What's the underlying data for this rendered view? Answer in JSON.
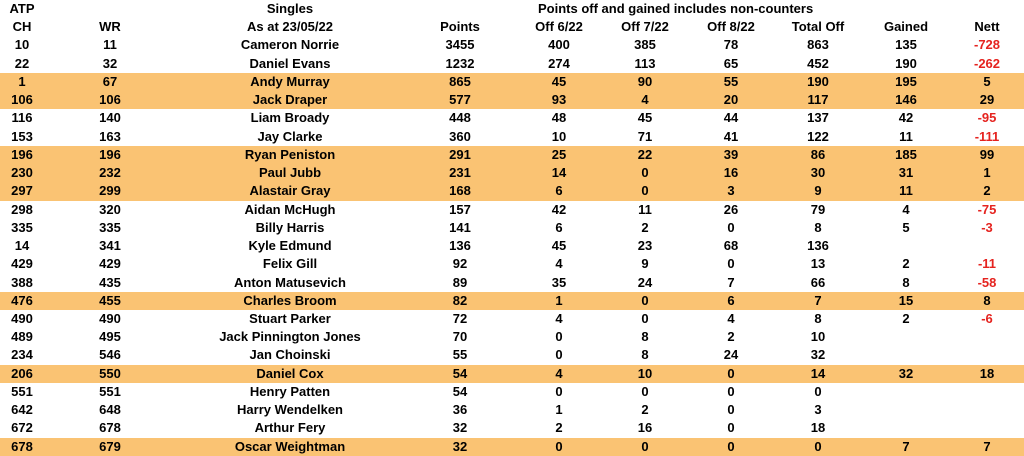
{
  "colors": {
    "highlight_row": "#FAC373",
    "negative_value": "#E5231F",
    "text": "#000000",
    "background": "#FFFFFF"
  },
  "table": {
    "group_header": {
      "atp": "ATP",
      "singles": "Singles",
      "note": "Points off and gained includes non-counters"
    },
    "columns": [
      "CH",
      "WR",
      "As at 23/05/22",
      "Points",
      "Off 6/22",
      "Off 7/22",
      "Off 8/22",
      "Total Off",
      "Gained",
      "Nett"
    ],
    "rows": [
      {
        "ch": "10",
        "wr": "11",
        "name": "Cameron Norrie",
        "points": "3455",
        "off_6_22": "400",
        "off_7_22": "385",
        "off_8_22": "78",
        "total_off": "863",
        "gained": "135",
        "nett": "-728",
        "highlight": false
      },
      {
        "ch": "22",
        "wr": "32",
        "name": "Daniel Evans",
        "points": "1232",
        "off_6_22": "274",
        "off_7_22": "113",
        "off_8_22": "65",
        "total_off": "452",
        "gained": "190",
        "nett": "-262",
        "highlight": false
      },
      {
        "ch": "1",
        "wr": "67",
        "name": "Andy Murray",
        "points": "865",
        "off_6_22": "45",
        "off_7_22": "90",
        "off_8_22": "55",
        "total_off": "190",
        "gained": "195",
        "nett": "5",
        "highlight": true
      },
      {
        "ch": "106",
        "wr": "106",
        "name": "Jack Draper",
        "points": "577",
        "off_6_22": "93",
        "off_7_22": "4",
        "off_8_22": "20",
        "total_off": "117",
        "gained": "146",
        "nett": "29",
        "highlight": true
      },
      {
        "ch": "116",
        "wr": "140",
        "name": "Liam Broady",
        "points": "448",
        "off_6_22": "48",
        "off_7_22": "45",
        "off_8_22": "44",
        "total_off": "137",
        "gained": "42",
        "nett": "-95",
        "highlight": false
      },
      {
        "ch": "153",
        "wr": "163",
        "name": "Jay Clarke",
        "points": "360",
        "off_6_22": "10",
        "off_7_22": "71",
        "off_8_22": "41",
        "total_off": "122",
        "gained": "11",
        "nett": "-111",
        "highlight": false
      },
      {
        "ch": "196",
        "wr": "196",
        "name": "Ryan Peniston",
        "points": "291",
        "off_6_22": "25",
        "off_7_22": "22",
        "off_8_22": "39",
        "total_off": "86",
        "gained": "185",
        "nett": "99",
        "highlight": true
      },
      {
        "ch": "230",
        "wr": "232",
        "name": "Paul Jubb",
        "points": "231",
        "off_6_22": "14",
        "off_7_22": "0",
        "off_8_22": "16",
        "total_off": "30",
        "gained": "31",
        "nett": "1",
        "highlight": true
      },
      {
        "ch": "297",
        "wr": "299",
        "name": "Alastair Gray",
        "points": "168",
        "off_6_22": "6",
        "off_7_22": "0",
        "off_8_22": "3",
        "total_off": "9",
        "gained": "11",
        "nett": "2",
        "highlight": true
      },
      {
        "ch": "298",
        "wr": "320",
        "name": "Aidan McHugh",
        "points": "157",
        "off_6_22": "42",
        "off_7_22": "11",
        "off_8_22": "26",
        "total_off": "79",
        "gained": "4",
        "nett": "-75",
        "highlight": false
      },
      {
        "ch": "335",
        "wr": "335",
        "name": "Billy Harris",
        "points": "141",
        "off_6_22": "6",
        "off_7_22": "2",
        "off_8_22": "0",
        "total_off": "8",
        "gained": "5",
        "nett": "-3",
        "highlight": false
      },
      {
        "ch": "14",
        "wr": "341",
        "name": "Kyle Edmund",
        "points": "136",
        "off_6_22": "45",
        "off_7_22": "23",
        "off_8_22": "68",
        "total_off": "136",
        "gained": "",
        "nett": "",
        "highlight": false
      },
      {
        "ch": "429",
        "wr": "429",
        "name": "Felix Gill",
        "points": "92",
        "off_6_22": "4",
        "off_7_22": "9",
        "off_8_22": "0",
        "total_off": "13",
        "gained": "2",
        "nett": "-11",
        "highlight": false
      },
      {
        "ch": "388",
        "wr": "435",
        "name": "Anton Matusevich",
        "points": "89",
        "off_6_22": "35",
        "off_7_22": "24",
        "off_8_22": "7",
        "total_off": "66",
        "gained": "8",
        "nett": "-58",
        "highlight": false
      },
      {
        "ch": "476",
        "wr": "455",
        "name": "Charles Broom",
        "points": "82",
        "off_6_22": "1",
        "off_7_22": "0",
        "off_8_22": "6",
        "total_off": "7",
        "gained": "15",
        "nett": "8",
        "highlight": true
      },
      {
        "ch": "490",
        "wr": "490",
        "name": "Stuart Parker",
        "points": "72",
        "off_6_22": "4",
        "off_7_22": "0",
        "off_8_22": "4",
        "total_off": "8",
        "gained": "2",
        "nett": "-6",
        "highlight": false
      },
      {
        "ch": "489",
        "wr": "495",
        "name": "Jack Pinnington Jones",
        "points": "70",
        "off_6_22": "0",
        "off_7_22": "8",
        "off_8_22": "2",
        "total_off": "10",
        "gained": "",
        "nett": "",
        "highlight": false
      },
      {
        "ch": "234",
        "wr": "546",
        "name": "Jan Choinski",
        "points": "55",
        "off_6_22": "0",
        "off_7_22": "8",
        "off_8_22": "24",
        "total_off": "32",
        "gained": "",
        "nett": "",
        "highlight": false
      },
      {
        "ch": "206",
        "wr": "550",
        "name": "Daniel Cox",
        "points": "54",
        "off_6_22": "4",
        "off_7_22": "10",
        "off_8_22": "0",
        "total_off": "14",
        "gained": "32",
        "nett": "18",
        "highlight": true
      },
      {
        "ch": "551",
        "wr": "551",
        "name": "Henry Patten",
        "points": "54",
        "off_6_22": "0",
        "off_7_22": "0",
        "off_8_22": "0",
        "total_off": "0",
        "gained": "",
        "nett": "",
        "highlight": false
      },
      {
        "ch": "642",
        "wr": "648",
        "name": "Harry Wendelken",
        "points": "36",
        "off_6_22": "1",
        "off_7_22": "2",
        "off_8_22": "0",
        "total_off": "3",
        "gained": "",
        "nett": "",
        "highlight": false
      },
      {
        "ch": "672",
        "wr": "678",
        "name": "Arthur Fery",
        "points": "32",
        "off_6_22": "2",
        "off_7_22": "16",
        "off_8_22": "0",
        "total_off": "18",
        "gained": "",
        "nett": "",
        "highlight": false
      },
      {
        "ch": "678",
        "wr": "679",
        "name": "Oscar Weightman",
        "points": "32",
        "off_6_22": "0",
        "off_7_22": "0",
        "off_8_22": "0",
        "total_off": "0",
        "gained": "7",
        "nett": "7",
        "highlight": true
      }
    ]
  }
}
